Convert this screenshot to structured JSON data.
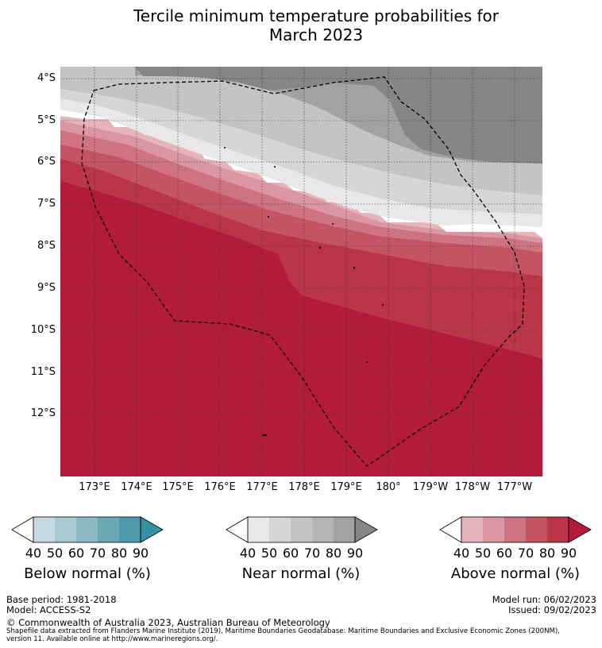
{
  "title_line1": "Tercile minimum temperature probabilities for",
  "title_line2": "March 2023",
  "latitude_labels": [
    "4°S",
    "5°S",
    "6°S",
    "7°S",
    "8°S",
    "9°S",
    "10°S",
    "11°S",
    "12°S"
  ],
  "longitude_labels": [
    "173°E",
    "174°E",
    "175°E",
    "176°E",
    "177°E",
    "178°E",
    "179°E",
    "180°",
    "179°W",
    "178°W",
    "177°W"
  ],
  "colorbars": {
    "below": {
      "title": "Below normal (%)",
      "ticks": [
        "40",
        "50",
        "60",
        "70",
        "80",
        "90"
      ],
      "colors": [
        "#ffffff",
        "#c4dae0",
        "#a8c9d2",
        "#8bb9c4",
        "#6aa8b6",
        "#4c9aab",
        "#3391a3"
      ]
    },
    "near": {
      "title": "Near normal (%)",
      "ticks": [
        "40",
        "50",
        "60",
        "70",
        "80",
        "90"
      ],
      "colors": [
        "#ffffff",
        "#e8e8e8",
        "#d6d6d6",
        "#c4c4c4",
        "#b4b4b4",
        "#a2a2a2",
        "#868686"
      ]
    },
    "above": {
      "title": "Above normal (%)",
      "ticks": [
        "40",
        "50",
        "60",
        "70",
        "80",
        "90"
      ],
      "colors": [
        "#ffffff",
        "#e6b4bd",
        "#da96a2",
        "#ce7381",
        "#c45462",
        "#bb3549",
        "#b31c39"
      ]
    }
  },
  "base_period": "Base period: 1981-2018",
  "model": "Model: ACCESS-S2",
  "model_run": "Model run: 06/02/2023",
  "issued": "Issued: 09/02/2023",
  "copyright": "© Commonwealth of Australia 2023, Australian Bureau of Meteorology",
  "shapefile_line1": "Shapefile data extracted from Flanders Marine Institute (2019), Maritime Boundaries Geodatabase: Maritime Boundaries and Exclusive Economic Zones (200NM),",
  "shapefile_line2": "version 11. Available online at http://www.marineregions.org/."
}
